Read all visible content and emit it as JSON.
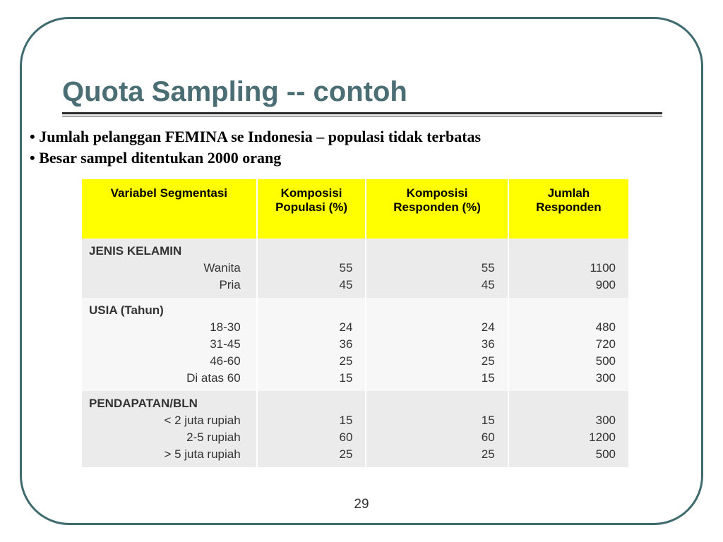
{
  "slide": {
    "title": "Quota Sampling -- contoh",
    "title_color": "#4a6e74",
    "title_fontsize": 40,
    "bullets": [
      "Jumlah pelanggan FEMINA se Indonesia – populasi tidak terbatas",
      "Besar sampel ditentukan 2000 orang"
    ],
    "bullet_fontsize": 22,
    "page_number": "29"
  },
  "table": {
    "header_bg": "#ffff00",
    "band_a_bg": "#ebebeb",
    "band_b_bg": "#f7f7f7",
    "text_color": "#333333",
    "fontsize": 17,
    "columns": [
      "Variabel Segmentasi",
      "Komposisi Populasi (%)",
      "Komposisi Responden (%)",
      "Jumlah Responden"
    ],
    "sections": [
      {
        "label": "JENIS KELAMIN",
        "band": "a",
        "rows": [
          {
            "label": "Wanita",
            "pop": "55",
            "resp": "55",
            "jml": "1100"
          },
          {
            "label": "Pria",
            "pop": "45",
            "resp": "45",
            "jml": "900"
          }
        ]
      },
      {
        "label": "USIA (Tahun)",
        "band": "b",
        "rows": [
          {
            "label": "18-30",
            "pop": "24",
            "resp": "24",
            "jml": "480"
          },
          {
            "label": "31-45",
            "pop": "36",
            "resp": "36",
            "jml": "720"
          },
          {
            "label": "46-60",
            "pop": "25",
            "resp": "25",
            "jml": "500"
          },
          {
            "label": "Di atas 60",
            "pop": "15",
            "resp": "15",
            "jml": "300"
          }
        ]
      },
      {
        "label": "PENDAPATAN/BLN",
        "band": "a",
        "rows": [
          {
            "label": "< 2 juta rupiah",
            "pop": "15",
            "resp": "15",
            "jml": "300"
          },
          {
            "label": "2-5 rupiah",
            "pop": "60",
            "resp": "60",
            "jml": "1200"
          },
          {
            "label": "> 5 juta rupiah",
            "pop": "25",
            "resp": "25",
            "jml": "500"
          }
        ]
      }
    ]
  },
  "frame": {
    "border_color": "#3f6b6f",
    "border_width": 3,
    "border_radius": 70
  }
}
